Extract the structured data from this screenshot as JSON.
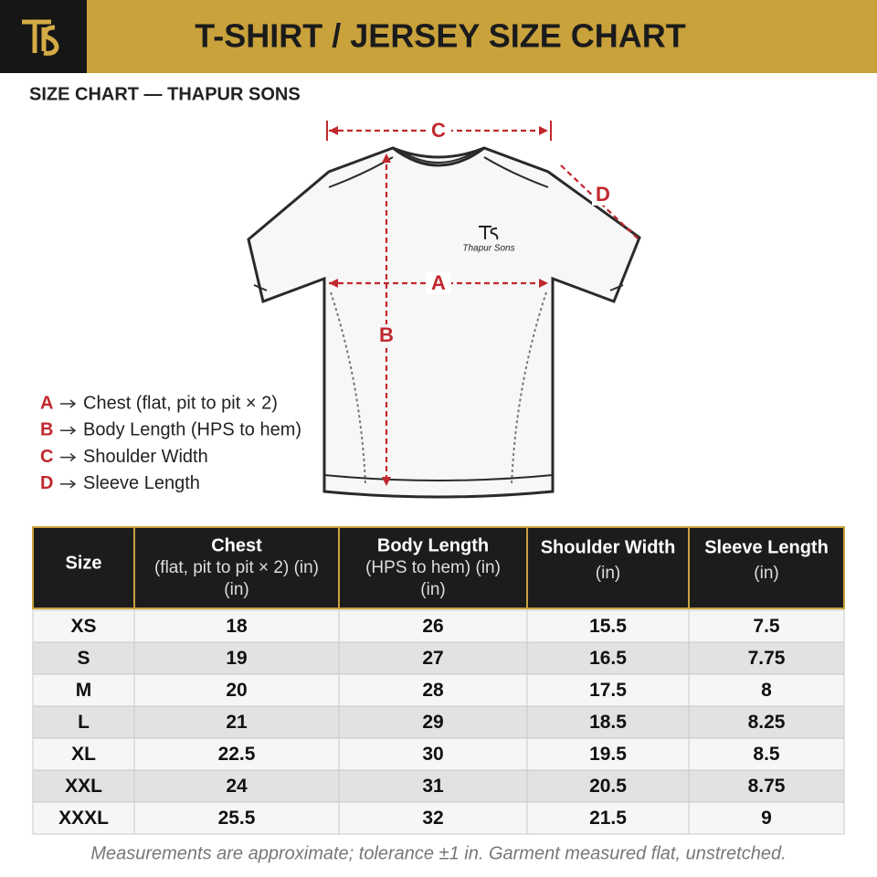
{
  "header": {
    "title": "T-SHIRT / JERSEY SIZE CHART",
    "subtitle": "SIZE CHART — THAPUR SONS"
  },
  "diagram": {
    "brand": "Thapur Sons",
    "labels": {
      "a": "A",
      "b": "B",
      "c": "C",
      "d": "D"
    }
  },
  "legend": [
    {
      "letter": "A",
      "text": "Chest (flat, pit to pit × 2)"
    },
    {
      "letter": "B",
      "text": "Body Length (HPS to hem)"
    },
    {
      "letter": "C",
      "text": "Shoulder Width"
    },
    {
      "letter": "D",
      "text": "Sleeve Length"
    }
  ],
  "table": {
    "header": [
      {
        "title": "Size",
        "sub": []
      },
      {
        "title": "Chest",
        "sub": [
          "(flat, pit to pit × 2) (in)",
          "(in)"
        ]
      },
      {
        "title": "Body Length",
        "sub": [
          "(HPS to hem) (in)",
          "(in)"
        ]
      },
      {
        "title": "Shoulder Width",
        "sub": [
          "(in)"
        ]
      },
      {
        "title": "Sleeve Length",
        "sub": [
          "(in)"
        ]
      }
    ],
    "rows": [
      [
        "XS",
        18,
        26,
        15.5,
        7.5
      ],
      [
        "S",
        19,
        27,
        16.5,
        7.75
      ],
      [
        "M",
        20,
        28,
        17.5,
        8
      ],
      [
        "L",
        21,
        29,
        18.5,
        8.25
      ],
      [
        "XL",
        22.5,
        30,
        19.5,
        8.5
      ],
      [
        "XXL",
        24,
        31,
        20.5,
        8.75
      ],
      [
        "XXXL",
        25.5,
        32,
        21.5,
        9
      ]
    ]
  },
  "footer": "Measurements are approximate; tolerance ±1 in. Garment measured flat, unstretched."
}
